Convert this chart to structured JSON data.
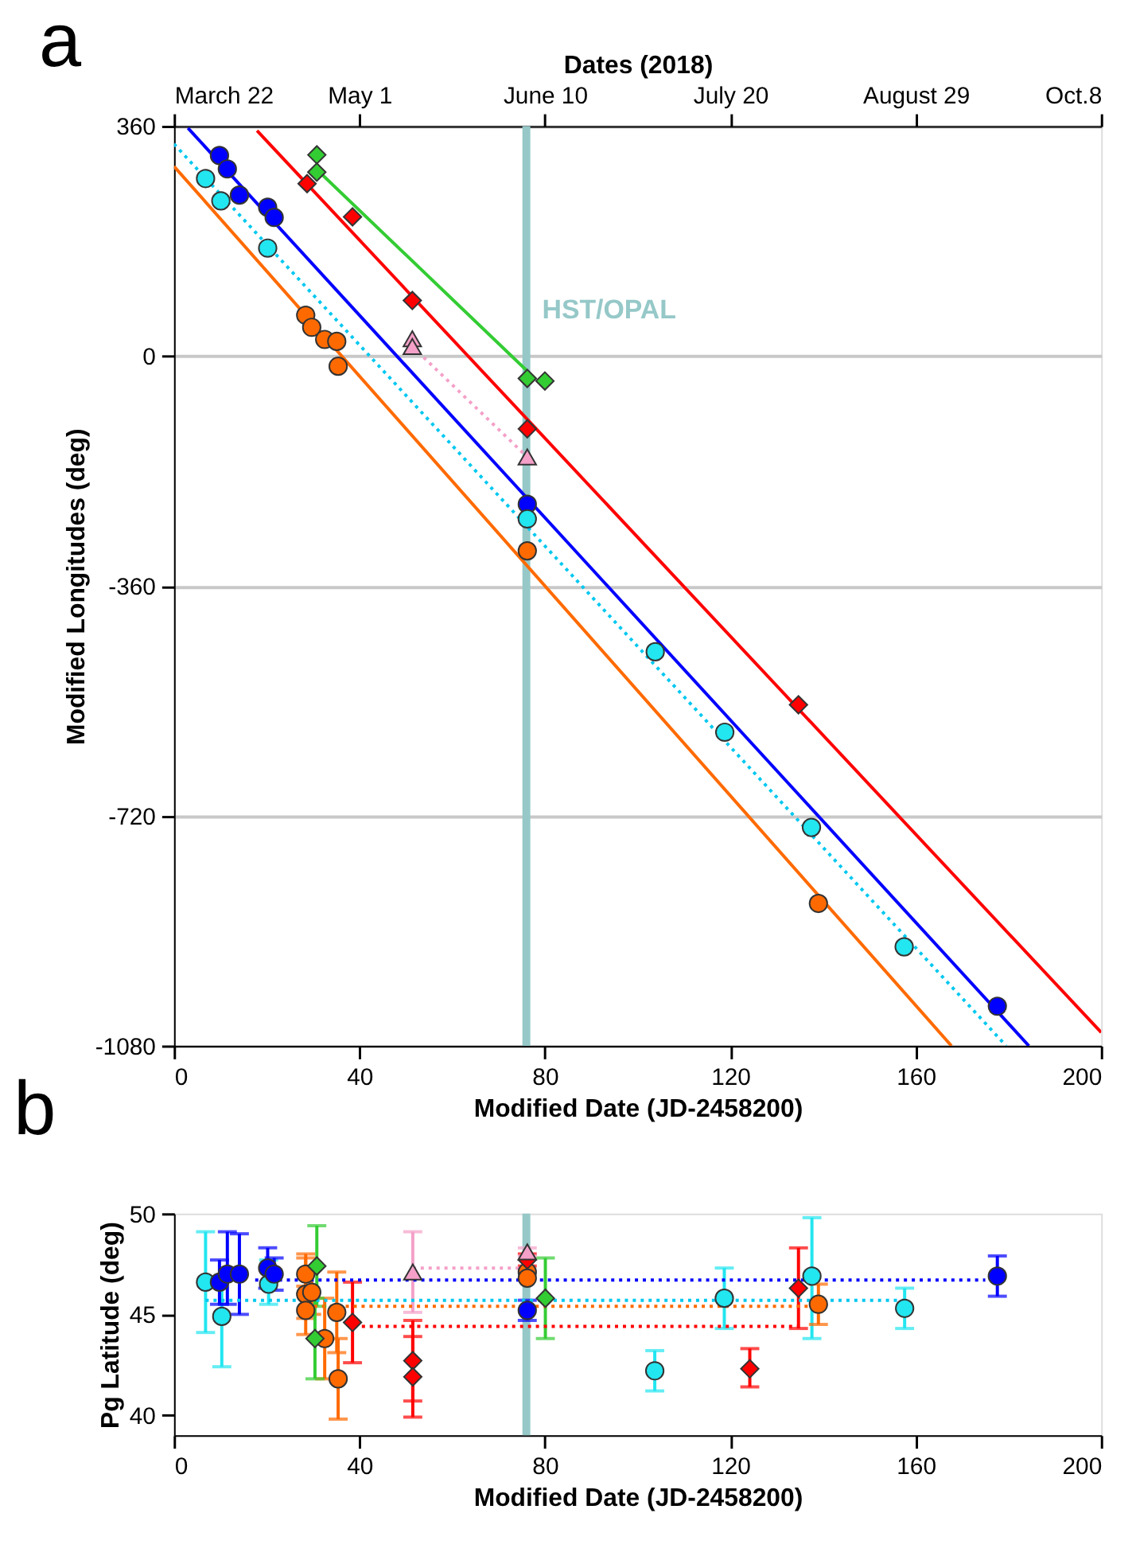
{
  "chart_data": [
    {
      "type": "scatter",
      "title": "a",
      "xlabel": "Modified Date (JD-2458200)",
      "ylabel": "Modified Longitudes (deg)",
      "x2label": "Dates (2018)",
      "xlim": [
        0,
        200
      ],
      "xticks": [
        0,
        40,
        80,
        120,
        160,
        200
      ],
      "ylim": [
        -1080,
        360
      ],
      "yticks": [
        360,
        0,
        -360,
        -720,
        -1080
      ],
      "x2lim": [
        "2018-03-22",
        "2018-10-08"
      ],
      "x2ticks": [
        {
          "value": "2018-03-22",
          "label": "March 22"
        },
        {
          "value": "2018-05-01",
          "label": "May 1"
        },
        {
          "value": "2018-06-10",
          "label": "June 10"
        },
        {
          "value": "2018-07-20",
          "label": "July 20"
        },
        {
          "value": "2018-08-29",
          "label": "August 29"
        },
        {
          "value": "2018-10-08",
          "label": "Oct.8"
        }
      ],
      "grid": "y",
      "ref_lines": [
        {
          "axis": "x",
          "value": 76,
          "label": "HST/OPAL",
          "color": "#96c8c8"
        }
      ],
      "series": [
        {
          "type": "line",
          "color": "#0000ff",
          "line_style": "solid",
          "x": [
            3,
            184.4
          ],
          "values": [
            357,
            -1080
          ]
        },
        {
          "type": "line",
          "color": "#00c8f0",
          "line_style": "dotted",
          "x": [
            0,
            179.5
          ],
          "values": [
            332,
            -1080
          ]
        },
        {
          "type": "line",
          "color": "#ff6a00",
          "line_style": "solid",
          "x": [
            0,
            167.7
          ],
          "values": [
            297,
            -1080
          ]
        },
        {
          "type": "line",
          "color": "#ff0000",
          "line_style": "solid",
          "x": [
            17.9,
            200
          ],
          "values": [
            353,
            -1059
          ]
        },
        {
          "type": "line",
          "color": "#33cc33",
          "line_style": "solid",
          "x": [
            30.8,
            78
          ],
          "values": [
            292,
            -36
          ]
        },
        {
          "type": "line",
          "color": "#f4a0c8",
          "line_style": "dotted",
          "x": [
            51.4,
            76.2
          ],
          "values": [
            15,
            -158
          ]
        },
        {
          "marker": "circle",
          "color": "#0000ff",
          "x": [
            9.8,
            11.5,
            14.1,
            20.2,
            21.6,
            76.2,
            177.6
          ],
          "values": [
            314,
            293,
            252,
            233,
            217,
            -232,
            -1018
          ]
        },
        {
          "marker": "circle",
          "color": "#22e6f0",
          "x": [
            6.8,
            10.1,
            20.2,
            76.2,
            103.8,
            118.8,
            137.5,
            157.5
          ],
          "values": [
            278,
            243,
            169,
            -255,
            -463,
            -589,
            -738,
            -925
          ]
        },
        {
          "marker": "circle",
          "color": "#ff6a00",
          "x": [
            28.4,
            29.7,
            32.5,
            35.1,
            35.4,
            76.2,
            139.0
          ],
          "values": [
            64,
            45,
            26,
            23,
            -16,
            -305,
            -857
          ]
        },
        {
          "marker": "diamond",
          "color": "#ff0000",
          "x": [
            28.7,
            38.5,
            51.4,
            76.2,
            134.7
          ],
          "values": [
            270,
            218,
            87,
            -114,
            -546
          ]
        },
        {
          "marker": "diamond",
          "color": "#33cc33",
          "x": [
            30.8,
            30.8,
            76.2,
            80.0
          ],
          "values": [
            315,
            288,
            -35,
            -39
          ]
        },
        {
          "marker": "triangle",
          "color": "#f4a0c8",
          "x": [
            51.4,
            51.4,
            76.2
          ],
          "values": [
            27,
            15,
            -158
          ]
        }
      ]
    },
    {
      "type": "scatter",
      "title": "b",
      "xlabel": "Modified Date (JD-2458200)",
      "ylabel": "Pg Latitude (deg)",
      "xlim": [
        0,
        200
      ],
      "xticks": [
        0,
        40,
        80,
        120,
        160,
        200
      ],
      "ylim": [
        39,
        50
      ],
      "yticks": [
        40,
        45,
        50
      ],
      "grid": false,
      "ref_lines": [
        {
          "axis": "x",
          "value": 76,
          "color": "#96c8c8"
        }
      ],
      "series": [
        {
          "type": "line",
          "color": "#0000ff",
          "line_style": "dotted",
          "x": [
            17.5,
            175
          ],
          "values": [
            46.7,
            46.7
          ]
        },
        {
          "type": "line",
          "color": "#00c8f0",
          "line_style": "dotted",
          "x": [
            6.8,
            158
          ],
          "values": [
            45.7,
            45.7
          ]
        },
        {
          "type": "line",
          "color": "#ff6a00",
          "line_style": "dotted",
          "x": [
            28.5,
            139
          ],
          "values": [
            45.4,
            45.4
          ]
        },
        {
          "type": "line",
          "color": "#ff0000",
          "line_style": "dotted",
          "x": [
            38.8,
            134.7
          ],
          "values": [
            44.4,
            44.4
          ]
        },
        {
          "type": "line",
          "color": "#f4a0c8",
          "line_style": "dotted",
          "x": [
            51.5,
            76
          ],
          "values": [
            47.3,
            47.3
          ]
        },
        {
          "marker": "circle",
          "color": "#22e6f0",
          "x": [
            6.8,
            10.3,
            20.4,
            103.7,
            118.7,
            137.6,
            157.6
          ],
          "values": [
            46.6,
            44.9,
            46.5,
            42.2,
            45.8,
            46.9,
            45.3
          ],
          "errors": [
            [
              44.1,
              49.1
            ],
            [
              42.4,
              46.7
            ],
            [
              45.5,
              47.7
            ],
            [
              41.2,
              43.2
            ],
            [
              44.3,
              47.3
            ],
            [
              43.8,
              49.8
            ],
            [
              44.3,
              46.3
            ]
          ]
        },
        {
          "marker": "circle",
          "color": "#0000ff",
          "x": [
            9.8,
            11.5,
            14.1,
            20.2,
            21.6,
            76.2,
            177.6
          ],
          "values": [
            46.6,
            47.0,
            47.0,
            47.3,
            47.0,
            45.2,
            46.9
          ],
          "errors": [
            [
              45.5,
              47.7
            ],
            [
              45.5,
              49.1
            ],
            [
              45.0,
              49.0
            ],
            [
              46.3,
              48.3
            ],
            [
              46.2,
              47.8
            ],
            [
              44.7,
              45.7
            ],
            [
              45.9,
              47.9
            ]
          ]
        },
        {
          "marker": "circle",
          "color": "#ff6a00",
          "x": [
            28.4,
            28.4,
            28.4,
            29.7,
            32.5,
            35.1,
            35.4,
            76.2,
            76.2,
            139.0
          ],
          "values": [
            47.0,
            46.0,
            45.2,
            46.1,
            43.8,
            45.1,
            41.8,
            47.1,
            46.8,
            45.5
          ],
          "errors": [
            [
              46.0,
              48.0
            ],
            [
              44.8,
              47.8
            ],
            [
              44.0,
              46.4
            ],
            [
              45.0,
              47.2
            ],
            [
              41.8,
              45.8
            ],
            [
              43.1,
              47.1
            ],
            [
              39.8,
              43.8
            ],
            null,
            null,
            [
              44.5,
              46.5
            ]
          ]
        },
        {
          "marker": "diamond",
          "color": "#ff0000",
          "x": [
            38.5,
            51.5,
            51.5,
            76.2,
            124.2,
            134.7
          ],
          "values": [
            44.6,
            42.7,
            41.9,
            47.7,
            42.3,
            46.3
          ],
          "errors": [
            [
              42.6,
              46.6
            ],
            [
              40.7,
              43.9
            ],
            [
              39.9,
              44.7
            ],
            [
              47.4,
              48.0
            ],
            [
              41.4,
              43.3
            ],
            [
              44.3,
              48.3
            ]
          ]
        },
        {
          "marker": "diamond",
          "color": "#33cc33",
          "x": [
            30.8,
            30.4,
            80.1
          ],
          "values": [
            47.4,
            43.8,
            45.8
          ],
          "errors": [
            [
              45.4,
              49.4
            ],
            [
              41.8,
              45.8
            ],
            [
              43.8,
              47.8
            ]
          ]
        },
        {
          "marker": "triangle",
          "color": "#f4a0c8",
          "x": [
            51.5,
            76.2
          ],
          "values": [
            47.1,
            48.1
          ],
          "errors": [
            [
              45.1,
              49.1
            ],
            [
              47.9,
              48.3
            ]
          ]
        }
      ]
    }
  ]
}
